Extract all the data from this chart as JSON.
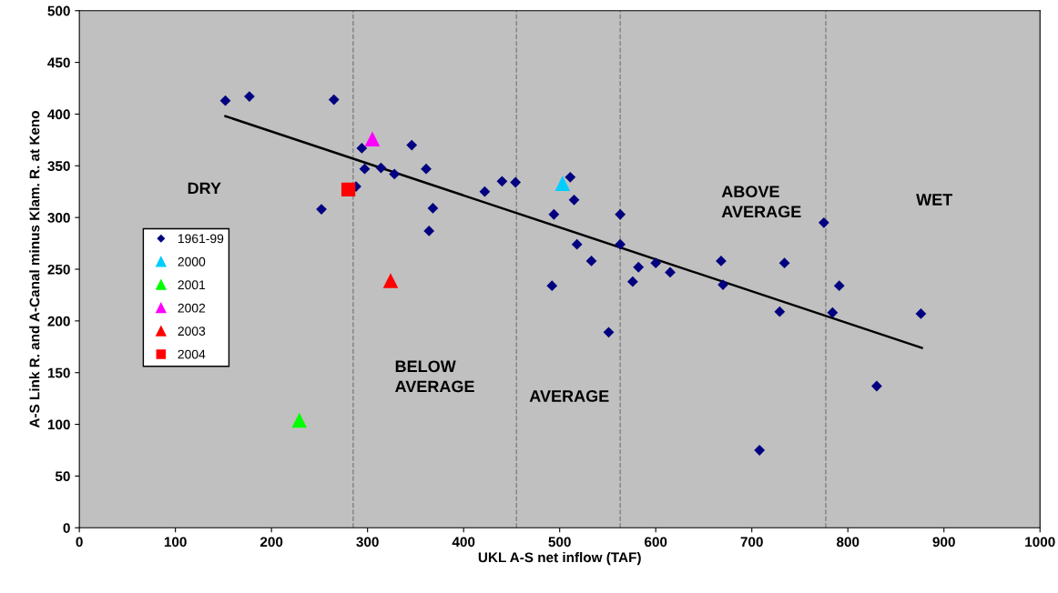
{
  "chart_data": {
    "type": "scatter",
    "xlabel": "UKL A-S net inflow (TAF)",
    "ylabel": "A-S Link R. and A-Canal minus Klam. R. at Keno",
    "xlim": [
      0,
      1000
    ],
    "xticks": [
      0,
      100,
      200,
      300,
      400,
      500,
      600,
      700,
      800,
      900,
      1000
    ],
    "ylim": [
      0,
      500
    ],
    "yticks": [
      0,
      50,
      100,
      150,
      200,
      250,
      300,
      350,
      400,
      450,
      500
    ],
    "grid": false,
    "legend": "left",
    "series": [
      {
        "name": "1961-99",
        "color": "#000080",
        "marker": "diamond",
        "x": [
          152,
          177,
          265,
          252,
          288,
          294,
          297,
          314,
          328,
          346,
          361,
          364,
          368,
          422,
          440,
          454,
          494,
          492,
          511,
          515,
          518,
          533,
          551,
          563,
          563,
          576,
          582,
          600,
          615,
          668,
          670,
          708,
          729,
          734,
          775,
          784,
          791,
          830,
          876
        ],
        "values": [
          413,
          417,
          414,
          308,
          330,
          367,
          347,
          348,
          342,
          370,
          347,
          287,
          309,
          325,
          335,
          334,
          303,
          234,
          339,
          317,
          274,
          258,
          189,
          303,
          274,
          238,
          252,
          256,
          247,
          258,
          235,
          75,
          209,
          256,
          295,
          208,
          234,
          137,
          207
        ]
      },
      {
        "name": "2000",
        "color": "#00ccff",
        "marker": "triangle",
        "x": [
          503
        ],
        "values": [
          333
        ]
      },
      {
        "name": "2001",
        "color": "#00ff00",
        "marker": "triangle",
        "x": [
          229
        ],
        "values": [
          104
        ]
      },
      {
        "name": "2002",
        "color": "#ff00ff",
        "marker": "triangle",
        "x": [
          305
        ],
        "values": [
          376
        ]
      },
      {
        "name": "2003",
        "color": "#ff0000",
        "marker": "triangle",
        "x": [
          324
        ],
        "values": [
          239
        ]
      },
      {
        "name": "2004",
        "color": "#ff0000",
        "marker": "square",
        "x": [
          280
        ],
        "values": [
          327
        ]
      },
      {
        "type": "line",
        "color": "#000000",
        "marker": "none",
        "x": [
          152,
          877
        ],
        "values": [
          398,
          174
        ]
      }
    ],
    "ref_lines": [
      {
        "axis": "x",
        "value": 285,
        "color": "#808080",
        "line_style": "dashed"
      },
      {
        "axis": "x",
        "value": 455,
        "color": "#808080",
        "line_style": "dashed"
      },
      {
        "axis": "x",
        "value": 563,
        "color": "#808080",
        "line_style": "dashed"
      },
      {
        "axis": "x",
        "value": 777,
        "color": "#808080",
        "line_style": "dashed"
      }
    ],
    "annotations": [
      "DRY",
      "BELOW\nAVERAGE",
      "AVERAGE",
      "ABOVE\nAVERAGE",
      "WET"
    ]
  }
}
